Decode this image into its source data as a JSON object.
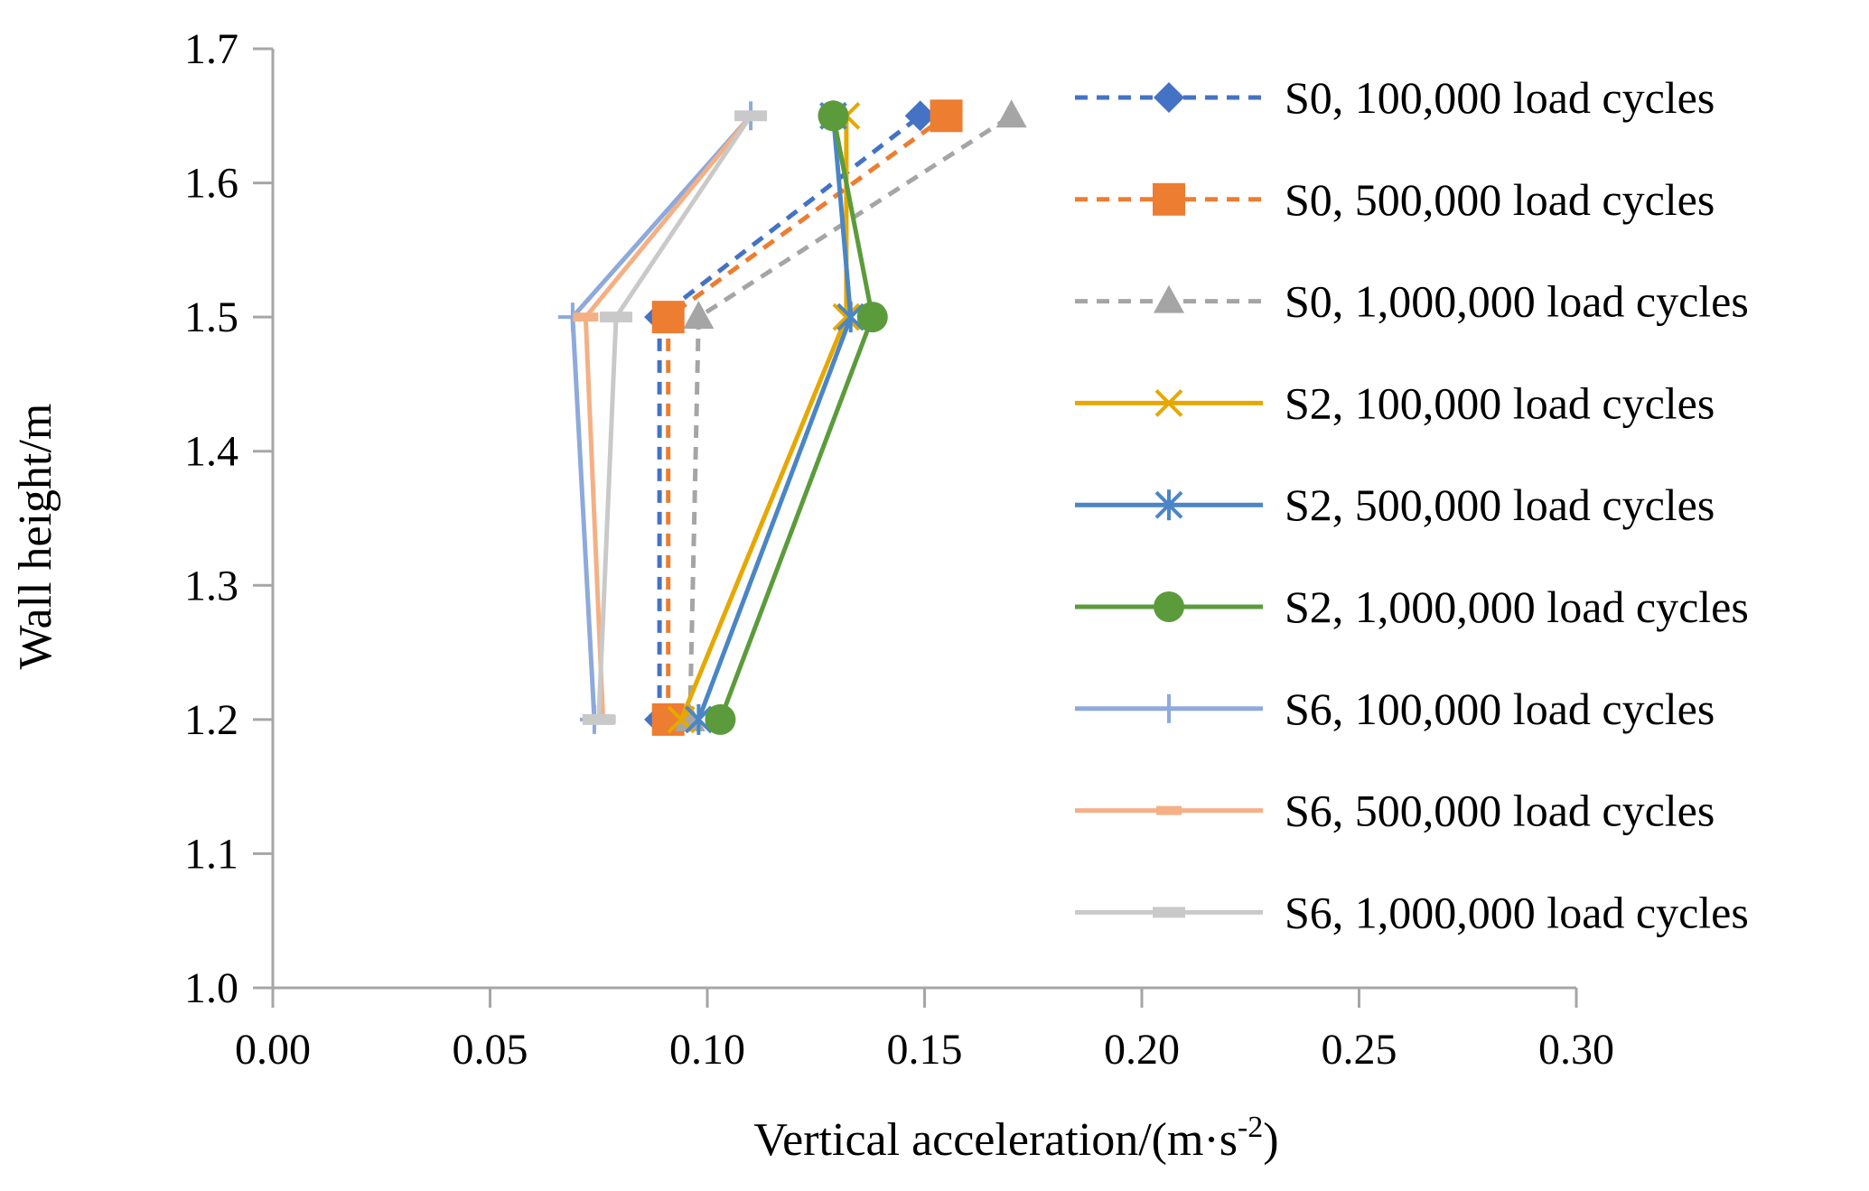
{
  "chart_data": {
    "type": "line",
    "title": "",
    "xlabel": "Vertical acceleration/(m·s",
    "xlabel_superscript": "-2",
    "xlabel_suffix": ")",
    "ylabel": "Wall height/m",
    "xlim": [
      0,
      0.3
    ],
    "ylim": [
      1.0,
      1.7
    ],
    "x_ticks": [
      "0.00",
      "0.05",
      "0.10",
      "0.15",
      "0.20",
      "0.25",
      "0.30"
    ],
    "y_ticks": [
      "1.0",
      "1.1",
      "1.2",
      "1.3",
      "1.4",
      "1.5",
      "1.6",
      "1.7"
    ],
    "grid": false,
    "legend_position": "right",
    "series": [
      {
        "name": "S0, 100,000 load cycles",
        "color": "#4472C4",
        "dash": "dashed",
        "marker": "diamond",
        "x": [
          0.089,
          0.089,
          0.149
        ],
        "y": [
          1.2,
          1.5,
          1.65
        ]
      },
      {
        "name": "S0, 500,000 load cycles",
        "color": "#ED7D31",
        "dash": "dashed",
        "marker": "square",
        "x": [
          0.091,
          0.091,
          0.155
        ],
        "y": [
          1.2,
          1.5,
          1.65
        ]
      },
      {
        "name": "S0, 1,000,000 load cycles",
        "color": "#A5A5A5",
        "dash": "dashed",
        "marker": "triangle",
        "x": [
          0.096,
          0.098,
          0.17
        ],
        "y": [
          1.2,
          1.5,
          1.65
        ]
      },
      {
        "name": "S2, 100,000 load cycles",
        "color": "#E6A800",
        "dash": "solid",
        "marker": "x",
        "x": [
          0.094,
          0.132,
          0.132
        ],
        "y": [
          1.2,
          1.5,
          1.65
        ]
      },
      {
        "name": "S2, 500,000 load cycles",
        "color": "#4A86C5",
        "dash": "solid",
        "marker": "star",
        "x": [
          0.098,
          0.133,
          0.129
        ],
        "y": [
          1.2,
          1.5,
          1.65
        ]
      },
      {
        "name": "S2, 1,000,000 load cycles",
        "color": "#5B9B3C",
        "dash": "solid",
        "marker": "circle",
        "x": [
          0.103,
          0.138,
          0.129
        ],
        "y": [
          1.2,
          1.5,
          1.65
        ]
      },
      {
        "name": "S6, 100,000 load cycles",
        "color": "#8EA9DB",
        "dash": "solid",
        "marker": "plus",
        "x": [
          0.074,
          0.069,
          0.11
        ],
        "y": [
          1.2,
          1.5,
          1.65
        ]
      },
      {
        "name": "S6, 500,000 load cycles",
        "color": "#F4B084",
        "dash": "solid",
        "marker": "dash",
        "x": [
          0.076,
          0.072,
          0.11
        ],
        "y": [
          1.2,
          1.5,
          1.65
        ]
      },
      {
        "name": "S6, 1,000,000 load cycles",
        "color": "#C9C9C9",
        "dash": "solid",
        "marker": "bar",
        "x": [
          0.075,
          0.079,
          0.11
        ],
        "y": [
          1.2,
          1.5,
          1.65
        ]
      }
    ]
  }
}
